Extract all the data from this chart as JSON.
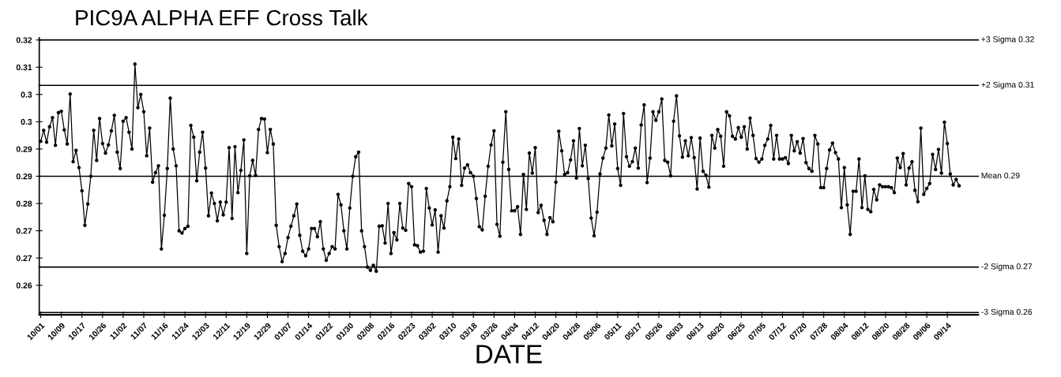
{
  "chart_data": {
    "type": "line",
    "title": "PIC9A ALPHA EFF Cross Talk",
    "xlabel": "DATE",
    "categories": [
      "10/01",
      null,
      null,
      null,
      null,
      null,
      null,
      "10/09",
      null,
      null,
      null,
      null,
      null,
      null,
      "10/17",
      null,
      null,
      null,
      null,
      null,
      null,
      "10/26",
      null,
      null,
      null,
      null,
      null,
      null,
      "11/02",
      null,
      null,
      null,
      null,
      null,
      null,
      "11/07",
      null,
      null,
      null,
      null,
      null,
      null,
      "11/16",
      null,
      null,
      null,
      null,
      null,
      null,
      "11/24",
      null,
      null,
      null,
      null,
      null,
      null,
      "12/03",
      null,
      null,
      null,
      null,
      null,
      null,
      "12/11",
      null,
      null,
      null,
      null,
      null,
      null,
      "12/19",
      null,
      null,
      null,
      null,
      null,
      null,
      "12/29",
      null,
      null,
      null,
      null,
      null,
      null,
      "01/07",
      null,
      null,
      null,
      null,
      null,
      null,
      "01/14",
      null,
      null,
      null,
      null,
      null,
      null,
      "01/22",
      null,
      null,
      null,
      null,
      null,
      null,
      "01/30",
      null,
      null,
      null,
      null,
      null,
      null,
      "02/08",
      null,
      null,
      null,
      null,
      null,
      null,
      "02/16",
      null,
      null,
      null,
      null,
      null,
      null,
      "02/23",
      null,
      null,
      null,
      null,
      null,
      null,
      "03/02",
      null,
      null,
      null,
      null,
      null,
      null,
      "03/10",
      null,
      null,
      null,
      null,
      null,
      null,
      "03/18",
      null,
      null,
      null,
      null,
      null,
      null,
      "03/26",
      null,
      null,
      null,
      null,
      null,
      null,
      "04/04",
      null,
      null,
      null,
      null,
      null,
      null,
      "04/12",
      null,
      null,
      null,
      null,
      null,
      null,
      "04/20",
      null,
      null,
      null,
      null,
      null,
      null,
      "04/28",
      null,
      null,
      null,
      null,
      null,
      null,
      "05/06",
      null,
      null,
      null,
      null,
      null,
      null,
      "05/11",
      null,
      null,
      null,
      null,
      null,
      null,
      "05/17",
      null,
      null,
      null,
      null,
      null,
      null,
      "05/26",
      null,
      null,
      null,
      null,
      null,
      null,
      "06/03",
      null,
      null,
      null,
      null,
      null,
      null,
      "06/13",
      null,
      null,
      null,
      null,
      null,
      null,
      "06/20",
      null,
      null,
      null,
      null,
      null,
      null,
      "06/25",
      null,
      null,
      null,
      null,
      null,
      null,
      "07/05",
      null,
      null,
      null,
      null,
      null,
      null,
      "07/12",
      null,
      null,
      null,
      null,
      null,
      null,
      "07/20",
      null,
      null,
      null,
      null,
      null,
      null,
      "07/28",
      null,
      null,
      null,
      null,
      null,
      null,
      "08/04",
      null,
      null,
      null,
      null,
      null,
      null,
      "08/12",
      null,
      null,
      null,
      null,
      null,
      null,
      "08/20",
      null,
      null,
      null,
      null,
      null,
      null,
      "08/28",
      null,
      null,
      null,
      null,
      null,
      null,
      "09/06",
      null,
      null,
      null,
      null,
      null,
      null,
      "09/14",
      null,
      null,
      null,
      null
    ],
    "series": [
      {
        "color": "#000000",
        "values": [
          0.2937,
          0.2961,
          0.2935,
          0.2969,
          0.2989,
          0.2928,
          0.3,
          0.3003,
          0.2962,
          0.2931,
          0.3041,
          0.2892,
          0.2917,
          0.2879,
          0.2828,
          0.2752,
          0.2799,
          0.286,
          0.2961,
          0.2895,
          0.2987,
          0.2932,
          0.2911,
          0.2929,
          0.296,
          0.2994,
          0.2913,
          0.2877,
          0.2981,
          0.2989,
          0.2957,
          0.292,
          0.3107,
          0.3011,
          0.304,
          0.3002,
          0.2905,
          0.2966,
          0.2847,
          0.2868,
          0.2883,
          0.27,
          0.2774,
          0.2877,
          0.3032,
          0.292,
          0.2883,
          0.274,
          0.2735,
          0.2745,
          0.275,
          0.2972,
          0.2946,
          0.285,
          0.2913,
          0.2957,
          0.2878,
          0.2773,
          0.2823,
          0.28,
          0.2762,
          0.2803,
          0.2775,
          0.2803,
          0.2923,
          0.2767,
          0.2925,
          0.2824,
          0.2873,
          0.294,
          0.269,
          0.2861,
          0.2895,
          0.2862,
          0.2963,
          0.2987,
          0.2986,
          0.2912,
          0.2963,
          0.2931,
          0.2752,
          0.2705,
          0.2672,
          0.269,
          0.2725,
          0.275,
          0.2773,
          0.2799,
          0.273,
          0.2695,
          0.2685,
          0.27,
          0.2745,
          0.2745,
          0.2727,
          0.276,
          0.27,
          0.2675,
          0.269,
          0.2705,
          0.27,
          0.282,
          0.2797,
          0.274,
          0.27,
          0.279,
          0.286,
          0.2903,
          0.2913,
          0.274,
          0.2705,
          0.266,
          0.2653,
          0.2664,
          0.2651,
          0.275,
          0.2751,
          0.2713,
          0.28,
          0.269,
          0.2736,
          0.272,
          0.28,
          0.2746,
          0.2741,
          0.2844,
          0.2837,
          0.2709,
          0.2707,
          0.2693,
          0.2695,
          0.2833,
          0.279,
          0.2753,
          0.2786,
          0.2693,
          0.2773,
          0.2746,
          0.2806,
          0.2837,
          0.2946,
          0.2899,
          0.2942,
          0.284,
          0.2878,
          0.2885,
          0.2868,
          0.286,
          0.2811,
          0.2749,
          0.2742,
          0.2816,
          0.2882,
          0.2929,
          0.296,
          0.2754,
          0.2728,
          0.2891,
          0.3002,
          0.2875,
          0.2784,
          0.2784,
          0.2793,
          0.2732,
          0.2864,
          0.2787,
          0.2911,
          0.2867,
          0.2923,
          0.278,
          0.2796,
          0.2763,
          0.2732,
          0.2769,
          0.276,
          0.2847,
          0.2959,
          0.2916,
          0.2864,
          0.2868,
          0.2896,
          0.2938,
          0.2856,
          0.2965,
          0.2883,
          0.2928,
          0.2855,
          0.2768,
          0.2729,
          0.2781,
          0.2865,
          0.29,
          0.2922,
          0.2995,
          0.2927,
          0.2975,
          0.2877,
          0.284,
          0.2998,
          0.2903,
          0.2882,
          0.2892,
          0.2922,
          0.2878,
          0.2973,
          0.3017,
          0.2846,
          0.29,
          0.3002,
          0.2983,
          0.3002,
          0.303,
          0.2895,
          0.2891,
          0.2861,
          0.2981,
          0.3037,
          0.2949,
          0.2902,
          0.2938,
          0.2905,
          0.2945,
          0.2901,
          0.2832,
          0.2944,
          0.2871,
          0.2862,
          0.2836,
          0.295,
          0.2922,
          0.2963,
          0.2948,
          0.2882,
          0.3002,
          0.2993,
          0.2948,
          0.2942,
          0.2967,
          0.2946,
          0.2969,
          0.292,
          0.2988,
          0.295,
          0.2899,
          0.2891,
          0.2898,
          0.2928,
          0.2942,
          0.2972,
          0.2898,
          0.295,
          0.2898,
          0.2898,
          0.2901,
          0.2888,
          0.295,
          0.2916,
          0.2936,
          0.2911,
          0.2943,
          0.289,
          0.2877,
          0.2871,
          0.295,
          0.2931,
          0.2835,
          0.2835,
          0.2877,
          0.2918,
          0.2933,
          0.2912,
          0.2898,
          0.2791,
          0.2879,
          0.2797,
          0.2732,
          0.2827,
          0.2827,
          0.2898,
          0.2791,
          0.2861,
          0.2787,
          0.2782,
          0.2831,
          0.2808,
          0.2841,
          0.2837,
          0.2837,
          0.2837,
          0.2835,
          0.2824,
          0.29,
          0.2879,
          0.291,
          0.2841,
          0.2878,
          0.2892,
          0.2829,
          0.2804,
          0.2966,
          0.282,
          0.2833,
          0.2844,
          0.2908,
          0.2875,
          0.2919,
          0.2867,
          0.2979,
          0.2932,
          0.2865,
          0.2841,
          0.2853,
          0.2839
        ]
      }
    ],
    "ylim": [
      0.2555,
      0.3165
    ],
    "yticks": [
      {
        "value": 0.316,
        "label": "0.32"
      },
      {
        "value": 0.31,
        "label": "0.31"
      },
      {
        "value": 0.304,
        "label": "0.3"
      },
      {
        "value": 0.298,
        "label": "0.3"
      },
      {
        "value": 0.292,
        "label": "0.29"
      },
      {
        "value": 0.286,
        "label": "0.29"
      },
      {
        "value": 0.28,
        "label": "0.28"
      },
      {
        "value": 0.274,
        "label": "0.27"
      },
      {
        "value": 0.268,
        "label": "0.27"
      },
      {
        "value": 0.262,
        "label": "0.26"
      }
    ],
    "ref_lines": [
      {
        "axis": "y",
        "value": 0.316,
        "label": "+3 Sigma 0.32",
        "color": "#000000"
      },
      {
        "axis": "y",
        "value": 0.306,
        "label": "+2 Sigma 0.31",
        "color": "#000000"
      },
      {
        "axis": "y",
        "value": 0.286,
        "label": "Mean 0.29",
        "color": "#000000"
      },
      {
        "axis": "y",
        "value": 0.266,
        "label": "-2 Sigma 0.27",
        "color": "#000000"
      },
      {
        "axis": "y",
        "value": 0.256,
        "label": "-3 Sigma 0.26",
        "color": "#000000"
      }
    ],
    "marker": "circle",
    "line_style": "solid",
    "grid": false,
    "legend": false
  }
}
